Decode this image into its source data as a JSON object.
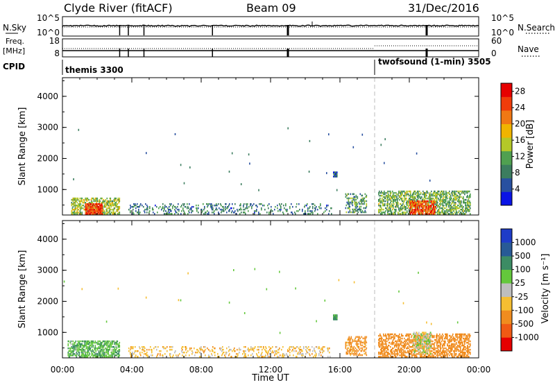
{
  "header": {
    "station": "Clyde River (fitACF)",
    "beam": "Beam 09",
    "date": "31/Dec/2016"
  },
  "summary_panels": {
    "nsky_label": "N.Sky",
    "nsky_ticks": [
      "10^5",
      "10^0"
    ],
    "nsearch_label": "N.Search",
    "nsearch_ticks": [
      "10^5",
      "10^0"
    ],
    "freq_label": "Freq.",
    "freq_unit": "[MHz]",
    "freq_ticks": [
      "18",
      "8"
    ],
    "nave_label": "Nave",
    "nave_ticks": [
      "60",
      "0"
    ],
    "cpid_label": "CPID",
    "cpid_segments": [
      {
        "name": "themis 3300",
        "start_hour": 0
      },
      {
        "name": "twofsound (1-min) 3505",
        "start_hour": 18
      }
    ],
    "data_gap_hours": [
      3.3,
      3.8,
      4.7,
      8.65,
      13.0,
      21.0
    ]
  },
  "colors": {
    "grid_dash": "#bbbbbb",
    "power_scale": [
      "#0a14e6",
      "#2850a0",
      "#3c7d5f",
      "#50a050",
      "#b4c828",
      "#f0b400",
      "#f07814",
      "#f03c0a",
      "#e60000"
    ],
    "velocity_scale": [
      "#e60000",
      "#f05a14",
      "#f08c1e",
      "#f5be32",
      "#bebebe",
      "#64c83c",
      "#3c8c64",
      "#285a96",
      "#1e3cc8"
    ]
  },
  "chart_data": [
    {
      "type": "heatmap",
      "panel": "power",
      "xlabel": "",
      "ylabel": "Slant Range [km]",
      "x_range_hours": [
        0,
        24
      ],
      "ylim": [
        180,
        4600
      ],
      "yticks": [
        "1000",
        "2000",
        "3000",
        "4000"
      ],
      "colorbar": {
        "label": "Power [dB]",
        "ticks": [
          "4",
          "8",
          "12",
          "16",
          "20",
          "24",
          "28"
        ],
        "range": [
          0,
          30
        ]
      },
      "regions": [
        {
          "t0": 0.5,
          "t1": 3.3,
          "r0": 200,
          "r1": 700,
          "value": 14,
          "density": 0.5
        },
        {
          "t0": 1.3,
          "t1": 2.3,
          "r0": 200,
          "r1": 550,
          "value": 25,
          "density": 0.75
        },
        {
          "t0": 3.8,
          "t1": 15.5,
          "r0": 200,
          "r1": 550,
          "value": 8,
          "density": 0.17
        },
        {
          "t0": 15.6,
          "t1": 15.8,
          "r0": 1400,
          "r1": 1550,
          "value": 6,
          "density": 0.9
        },
        {
          "t0": 16.3,
          "t1": 17.5,
          "r0": 250,
          "r1": 850,
          "value": 10,
          "density": 0.3
        },
        {
          "t0": 18.2,
          "t1": 23.5,
          "r0": 200,
          "r1": 950,
          "value": 12,
          "density": 0.45
        },
        {
          "t0": 20.0,
          "t1": 21.5,
          "r0": 200,
          "r1": 650,
          "value": 24,
          "density": 0.6
        }
      ]
    },
    {
      "type": "heatmap",
      "panel": "velocity",
      "xlabel": "Time UT",
      "ylabel": "Slant Range [km]",
      "x_range_hours": [
        0,
        24
      ],
      "xticks": [
        "00:00",
        "04:00",
        "08:00",
        "12:00",
        "16:00",
        "20:00",
        "00:00"
      ],
      "ylim": [
        180,
        4600
      ],
      "yticks": [
        "1000",
        "2000",
        "3000",
        "4000"
      ],
      "colorbar": {
        "label": "Velocity [m s⁻¹]",
        "ticks": [
          "1000",
          "500",
          "100",
          "25",
          "-25",
          "-100",
          "-500",
          "-1000"
        ]
      },
      "regions": [
        {
          "t0": 0.3,
          "t1": 3.3,
          "r0": 200,
          "r1": 700,
          "value": 80,
          "density": 0.5
        },
        {
          "t0": 3.8,
          "t1": 15.5,
          "r0": 200,
          "r1": 550,
          "value": -60,
          "density": 0.17
        },
        {
          "t0": 15.6,
          "t1": 15.8,
          "r0": 1400,
          "r1": 1550,
          "value": 150,
          "density": 0.9
        },
        {
          "t0": 16.3,
          "t1": 17.5,
          "r0": 250,
          "r1": 850,
          "value": -150,
          "density": 0.3
        },
        {
          "t0": 18.2,
          "t1": 23.5,
          "r0": 200,
          "r1": 950,
          "value": -200,
          "density": 0.45
        },
        {
          "t0": 20.2,
          "t1": 21.2,
          "r0": 300,
          "r1": 1000,
          "value": 0,
          "density": 0.45
        }
      ]
    }
  ]
}
